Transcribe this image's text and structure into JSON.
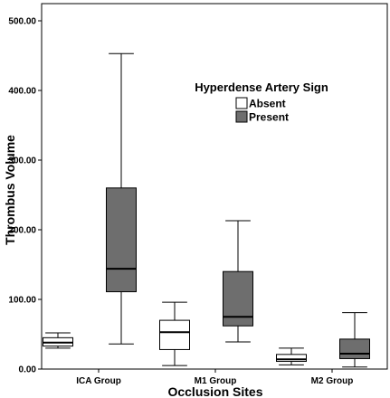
{
  "chart_data": {
    "type": "boxplot",
    "title": "",
    "xlabel": "Occlusion Sites",
    "ylabel": "Thrombus Volume",
    "ylim": [
      0,
      500
    ],
    "yticks": [
      "0.00",
      "100.00",
      "200.00",
      "300.00",
      "400.00",
      "500.00"
    ],
    "categories": [
      "ICA Group",
      "M1 Group",
      "M2 Group"
    ],
    "grid": false,
    "legend": {
      "title": "Hyperdense Artery Sign",
      "position": "top-right"
    },
    "series": [
      {
        "name": "Absent",
        "color": "#ffffff",
        "boxes": [
          {
            "min": 30,
            "q1": 33,
            "median": 38,
            "q3": 45,
            "max": 52
          },
          {
            "min": 5,
            "q1": 28,
            "median": 53,
            "q3": 70,
            "max": 96
          },
          {
            "min": 6,
            "q1": 11,
            "median": 14,
            "q3": 21,
            "max": 30
          }
        ]
      },
      {
        "name": "Present",
        "color": "#6e6e6e",
        "boxes": [
          {
            "min": 36,
            "q1": 111,
            "median": 144,
            "q3": 260,
            "max": 453
          },
          {
            "min": 39,
            "q1": 62,
            "median": 75,
            "q3": 140,
            "max": 213
          },
          {
            "min": 3,
            "q1": 15,
            "median": 22,
            "q3": 43,
            "max": 81
          }
        ]
      }
    ]
  }
}
